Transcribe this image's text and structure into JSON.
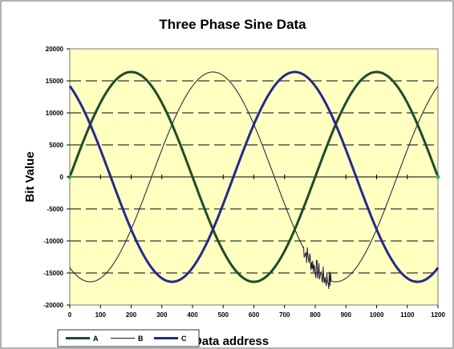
{
  "chart_data": {
    "type": "line",
    "title": "Three Phase Sine Data",
    "xlabel": "Data address",
    "ylabel": "Bit Value",
    "xlim": [
      0,
      1200
    ],
    "ylim": [
      -20000,
      20000
    ],
    "x_ticks": [
      0,
      100,
      200,
      300,
      400,
      500,
      600,
      700,
      800,
      900,
      1000,
      1100,
      1200
    ],
    "y_ticks": [
      20000,
      15000,
      10000,
      5000,
      0,
      -5000,
      -10000,
      -15000,
      -20000
    ],
    "x_tick_labels": [
      "0",
      "100",
      "200",
      "300",
      "400",
      "500",
      "600",
      "700",
      "800",
      "900",
      "1000",
      "1100",
      "1200"
    ],
    "y_tick_labels": [
      "20000",
      "15000",
      "10000",
      "5000",
      "0",
      "-5000",
      "-10000",
      "-15000",
      "-20000"
    ],
    "grid": "horizontal dashed",
    "legend_position": "bottom-left",
    "plot_background": "#ffffc0",
    "series": [
      {
        "name": "A",
        "color": "#1f4a2c",
        "line_width": "thick",
        "amplitude": 16383,
        "period": 800,
        "phase_deg": 0,
        "x": [
          0,
          50,
          100,
          150,
          200,
          250,
          300,
          350,
          400,
          450,
          500,
          550,
          600,
          650,
          700,
          750,
          800,
          850,
          900,
          950,
          1000,
          1050,
          1100,
          1150,
          1200
        ],
        "values": [
          0,
          6270,
          11585,
          15137,
          16383,
          15137,
          11585,
          6270,
          0,
          -6270,
          -11585,
          -15137,
          -16383,
          -15137,
          -11585,
          -6270,
          0,
          6270,
          11585,
          15137,
          16383,
          15137,
          11585,
          6270,
          0
        ]
      },
      {
        "name": "B",
        "color": "#1a1a3a",
        "line_width": "thin",
        "amplitude": 16383,
        "period": 800,
        "phase_deg": -120,
        "x": [
          0,
          50,
          100,
          150,
          200,
          250,
          300,
          350,
          400,
          450,
          500,
          550,
          600,
          650,
          700,
          750,
          800,
          850,
          900,
          950,
          1000,
          1050,
          1100,
          1150,
          1200
        ],
        "values": [
          -14188,
          -16248,
          -15826,
          -12997,
          -8192,
          -2138,
          4240,
          10000,
          14188,
          16248,
          15826,
          12997,
          8192,
          2138,
          -4240,
          -10000,
          -14188,
          -16248,
          -15826,
          -12997,
          -8192,
          -2138,
          4240,
          10000,
          14188
        ],
        "noise": {
          "x_from": 760,
          "x_to": 850
        }
      },
      {
        "name": "C",
        "color": "#232a8c",
        "line_width": "thick",
        "amplitude": 16383,
        "period": 800,
        "phase_deg": 120,
        "x": [
          0,
          50,
          100,
          150,
          200,
          250,
          300,
          350,
          400,
          450,
          500,
          550,
          600,
          650,
          700,
          750,
          800,
          850,
          900,
          950,
          1000,
          1050,
          1100,
          1150,
          1200
        ],
        "values": [
          14188,
          9978,
          4240,
          -2138,
          -8192,
          -12997,
          -15826,
          -16248,
          -14188,
          -9978,
          -4240,
          2138,
          8192,
          12997,
          15826,
          16248,
          14188,
          9978,
          4240,
          -2138,
          -8192,
          -12997,
          -15826,
          -16248,
          -14188
        ]
      }
    ]
  }
}
